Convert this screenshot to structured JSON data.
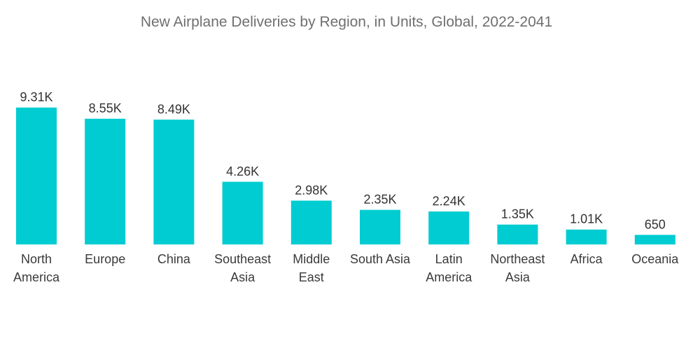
{
  "chart_data": {
    "type": "bar",
    "title": "New Airplane Deliveries by Region, in Units, Global, 2022-2041",
    "xlabel": "",
    "ylabel": "",
    "categories": [
      "North America",
      "Europe",
      "China",
      "Southeast Asia",
      "Middle East",
      "South Asia",
      "Latin America",
      "Northeast Asia",
      "Africa",
      "Oceania"
    ],
    "values": [
      9310,
      8550,
      8490,
      4260,
      2980,
      2350,
      2240,
      1350,
      1010,
      650
    ],
    "data_labels": [
      "9.31K",
      "8.55K",
      "8.49K",
      "4.26K",
      "2.98K",
      "2.35K",
      "2.24K",
      "1.35K",
      "1.01K",
      "650"
    ],
    "ylim": [
      0,
      9310
    ],
    "grid": false,
    "legend": "none",
    "bar_color": "#00ccd1"
  }
}
